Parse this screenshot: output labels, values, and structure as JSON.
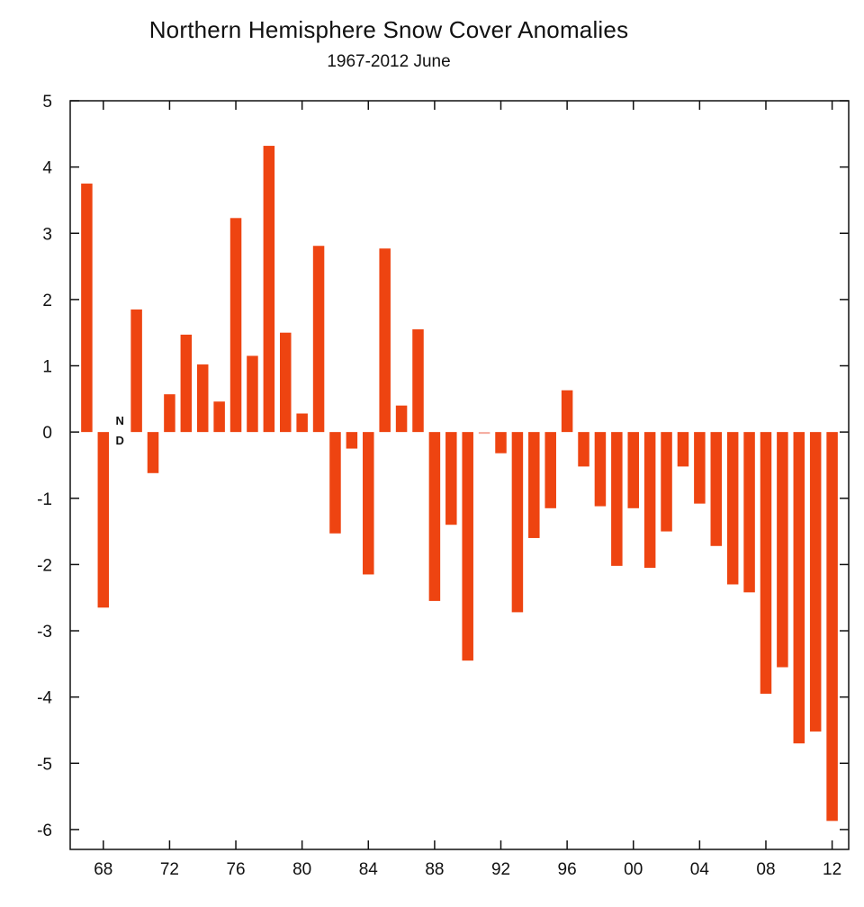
{
  "chart_data": {
    "type": "bar",
    "title": "Northern Hemisphere Snow Cover Anomalies",
    "subtitle": "1967-2012 June",
    "xlabel": "",
    "ylabel": "",
    "ylim": [
      -6.3,
      5
    ],
    "xlim": [
      1966,
      2013
    ],
    "grid": false,
    "bar_color": "#ee4411",
    "near_zero_color": "#f4a79a",
    "y_ticks": [
      5,
      4,
      3,
      2,
      1,
      0,
      -1,
      -2,
      -3,
      -4,
      -5,
      -6
    ],
    "x_tick_years": [
      1968,
      1972,
      1976,
      1980,
      1984,
      1988,
      1992,
      1996,
      2000,
      2004,
      2008,
      2012
    ],
    "x_tick_labels": [
      "68",
      "72",
      "76",
      "80",
      "84",
      "88",
      "92",
      "96",
      "00",
      "04",
      "08",
      "12"
    ],
    "no_data": {
      "year": 1969,
      "label_top": "N",
      "label_bottom": "D"
    },
    "years": [
      1967,
      1968,
      1970,
      1971,
      1972,
      1973,
      1974,
      1975,
      1976,
      1977,
      1978,
      1979,
      1980,
      1981,
      1982,
      1983,
      1984,
      1985,
      1986,
      1987,
      1988,
      1989,
      1990,
      1991,
      1992,
      1993,
      1994,
      1995,
      1996,
      1997,
      1998,
      1999,
      2000,
      2001,
      2002,
      2003,
      2004,
      2005,
      2006,
      2007,
      2008,
      2009,
      2010,
      2011,
      2012
    ],
    "values": [
      3.75,
      -2.65,
      1.85,
      -0.62,
      0.57,
      1.47,
      1.02,
      0.46,
      3.23,
      1.15,
      4.32,
      1.5,
      0.28,
      2.81,
      -1.53,
      -0.25,
      -2.15,
      2.77,
      0.4,
      1.55,
      -2.55,
      -1.4,
      -3.45,
      -0.02,
      -0.32,
      -2.72,
      -1.6,
      -1.15,
      0.63,
      -0.52,
      -1.12,
      -2.02,
      -1.15,
      -2.05,
      -1.5,
      -0.52,
      -1.08,
      -1.72,
      -2.3,
      -2.42,
      -3.95,
      -3.55,
      -4.7,
      -4.52,
      -5.87
    ]
  }
}
